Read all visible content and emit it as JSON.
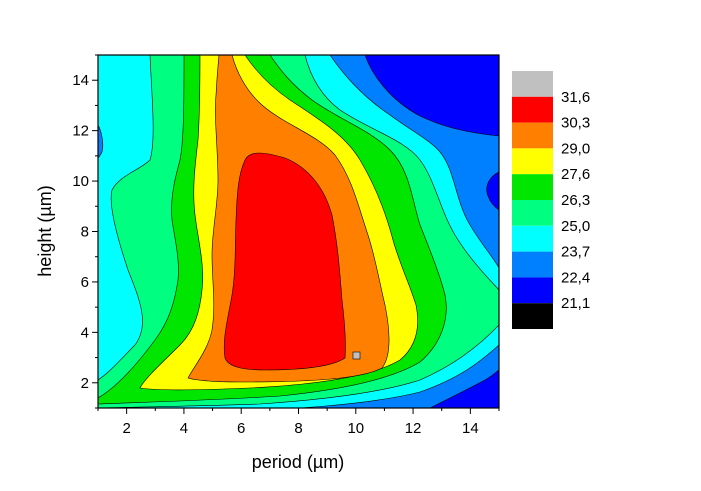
{
  "chart_data": {
    "type": "heatmap",
    "subtype": "filled-contour",
    "title": "",
    "xlabel": "period (µm)",
    "ylabel": "height (µm)",
    "xlim": [
      1,
      15
    ],
    "ylim": [
      1,
      15
    ],
    "xticks": [
      2,
      4,
      6,
      8,
      10,
      12,
      14
    ],
    "yticks": [
      2,
      4,
      6,
      8,
      10,
      12,
      14
    ],
    "xtick_labels": [
      "2",
      "4",
      "6",
      "8",
      "10",
      "12",
      "14"
    ],
    "ytick_labels": [
      "2",
      "4",
      "6",
      "8",
      "10",
      "12",
      "14"
    ],
    "grid": false,
    "legend_position": "right",
    "levels": [
      21.1,
      22.4,
      23.7,
      25.0,
      26.3,
      27.6,
      29.0,
      30.3,
      31.6
    ],
    "legend_labels": [
      "31,6",
      "30,3",
      "29,0",
      "27,6",
      "26,3",
      "25,0",
      "23,7",
      "22,4",
      "21,1"
    ],
    "legend_colors": [
      "#c0c0c0",
      "#ff0000",
      "#ff8000",
      "#ffff00",
      "#00e600",
      "#00ff80",
      "#00ffff",
      "#0080ff",
      "#0000ff",
      "#000000"
    ],
    "colors": {
      "below_21.1": "#000000",
      "21.1-22.4": "#0000ff",
      "22.4-23.7": "#0080ff",
      "23.7-25.0": "#00ffff",
      "25.0-26.3": "#00ff80",
      "26.3-27.6": "#00e600",
      "27.6-29.0": "#ffff00",
      "29.0-30.3": "#ff8000",
      "30.3-31.6": "#ff0000",
      "above_31.6": "#c0c0c0"
    },
    "peak": {
      "x": 10,
      "y": 3,
      "value_range": "above 31.6"
    }
  }
}
